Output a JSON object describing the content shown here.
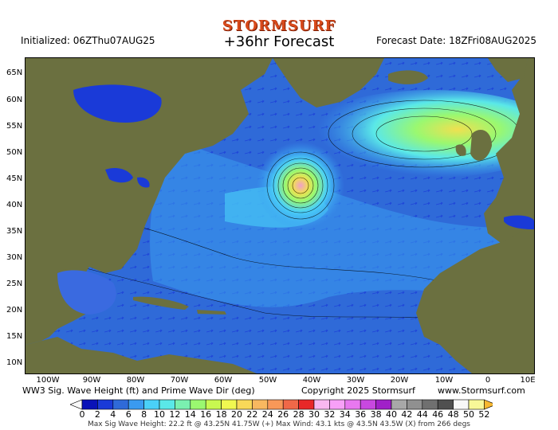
{
  "header": {
    "logo": "STORMSURF",
    "title": "+36hr Forecast",
    "initialized": "Initialized: 06ZThu07AUG25",
    "forecast_date": "Forecast Date: 18ZFri08AUG2025"
  },
  "axes": {
    "lat_labels": [
      "65N",
      "60N",
      "55N",
      "50N",
      "45N",
      "40N",
      "35N",
      "30N",
      "25N",
      "20N",
      "15N",
      "10N"
    ],
    "lon_labels": [
      "100W",
      "90W",
      "80W",
      "70W",
      "60W",
      "50W",
      "40W",
      "30W",
      "20W",
      "10W",
      "0",
      "10E"
    ]
  },
  "footer": {
    "product": "WW3 Sig. Wave Height (ft) and Prime Wave Dir (deg)",
    "copyright": "Copyright 2025 Stormsurf",
    "website": "www.Stormsurf.com",
    "stats": "Max Sig Wave Height: 22.2 ft @ 43.25N 41.75W (+)   Max Wind: 43.1 kts @ 43.5N 43.5W (X) from 266 degs"
  },
  "legend": {
    "labels": [
      "0",
      "2",
      "4",
      "6",
      "8",
      "10",
      "12",
      "14",
      "16",
      "18",
      "20",
      "22",
      "24",
      "26",
      "28",
      "30",
      "32",
      "34",
      "36",
      "38",
      "40",
      "42",
      "44",
      "46",
      "48",
      "50",
      "52"
    ],
    "colors": [
      "#0a12b8",
      "#1a3ad8",
      "#2f6ad8",
      "#3a9af0",
      "#4ad0f8",
      "#5ae8e8",
      "#7af0b0",
      "#9af870",
      "#c8f850",
      "#f0f850",
      "#f8d858",
      "#f8b860",
      "#f89858",
      "#f06848",
      "#e82828",
      "#f8b8f0",
      "#f8a0f8",
      "#e878f0",
      "#c848e0",
      "#a020c8",
      "#a8a8a8",
      "#909090",
      "#707070",
      "#505050",
      "#f8f8f8",
      "#f8f898"
    ],
    "accent_logo": "#d84a1b"
  }
}
